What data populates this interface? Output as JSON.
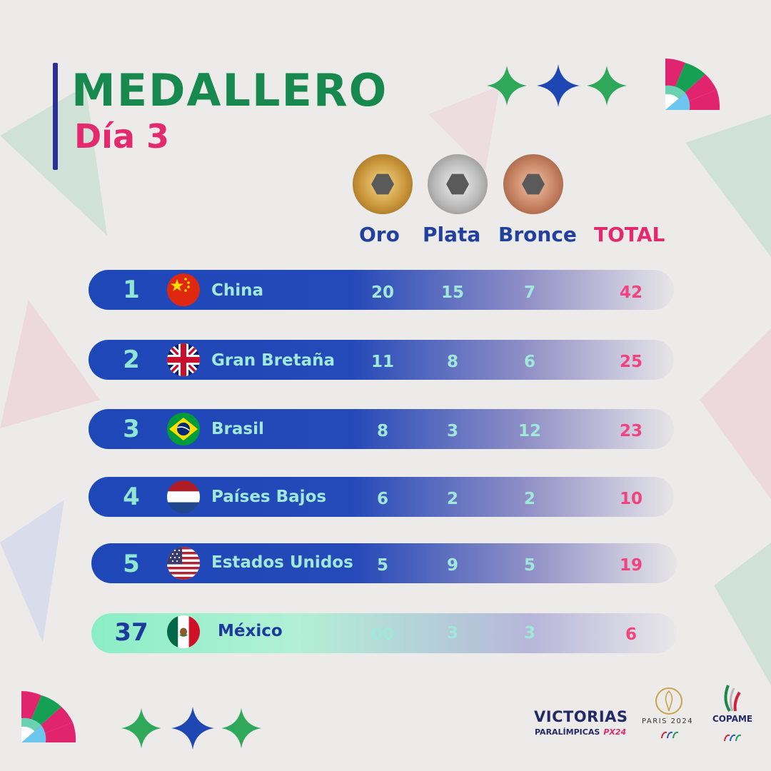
{
  "header": {
    "title": "MEDALLERO",
    "subtitle": "Día 3"
  },
  "columns": {
    "gold": "Oro",
    "silver": "Plata",
    "bronze": "Bronce",
    "total": "TOTAL"
  },
  "rows": [
    {
      "rank": "1",
      "country": "China",
      "gold": "20",
      "silver": "15",
      "bronze": "7",
      "total": "42",
      "flag": "china-flag-icon"
    },
    {
      "rank": "2",
      "country": "Gran Bretaña",
      "gold": "11",
      "silver": "8",
      "bronze": "6",
      "total": "25",
      "flag": "uk-flag-icon"
    },
    {
      "rank": "3",
      "country": "Brasil",
      "gold": "8",
      "silver": "3",
      "bronze": "12",
      "total": "23",
      "flag": "brazil-flag-icon"
    },
    {
      "rank": "4",
      "country": "Países Bajos",
      "gold": "6",
      "silver": "2",
      "bronze": "2",
      "total": "10",
      "flag": "netherlands-flag-icon"
    },
    {
      "rank": "5",
      "country": "Estados Unidos",
      "gold": "5",
      "silver": "9",
      "bronze": "5",
      "total": "19",
      "flag": "usa-flag-icon"
    },
    {
      "rank": "37",
      "country": "México",
      "gold": "00",
      "silver": "3",
      "bronze": "3",
      "total": "6",
      "flag": "mexico-flag-icon"
    }
  ],
  "footer": {
    "brand_line1": "VICTORIAS",
    "brand_line2": "PARALÍMPICAS",
    "brand_tag": "PX24",
    "paris": "PARIS 2024",
    "org": "COPAME"
  },
  "colors": {
    "title_green": "#17894f",
    "subtitle_pink": "#e32a6d",
    "header_blue": "#22409e",
    "row_blue": "#1e47b8",
    "highlight_green": "#8aeec6",
    "total_pink": "#f0437f"
  }
}
